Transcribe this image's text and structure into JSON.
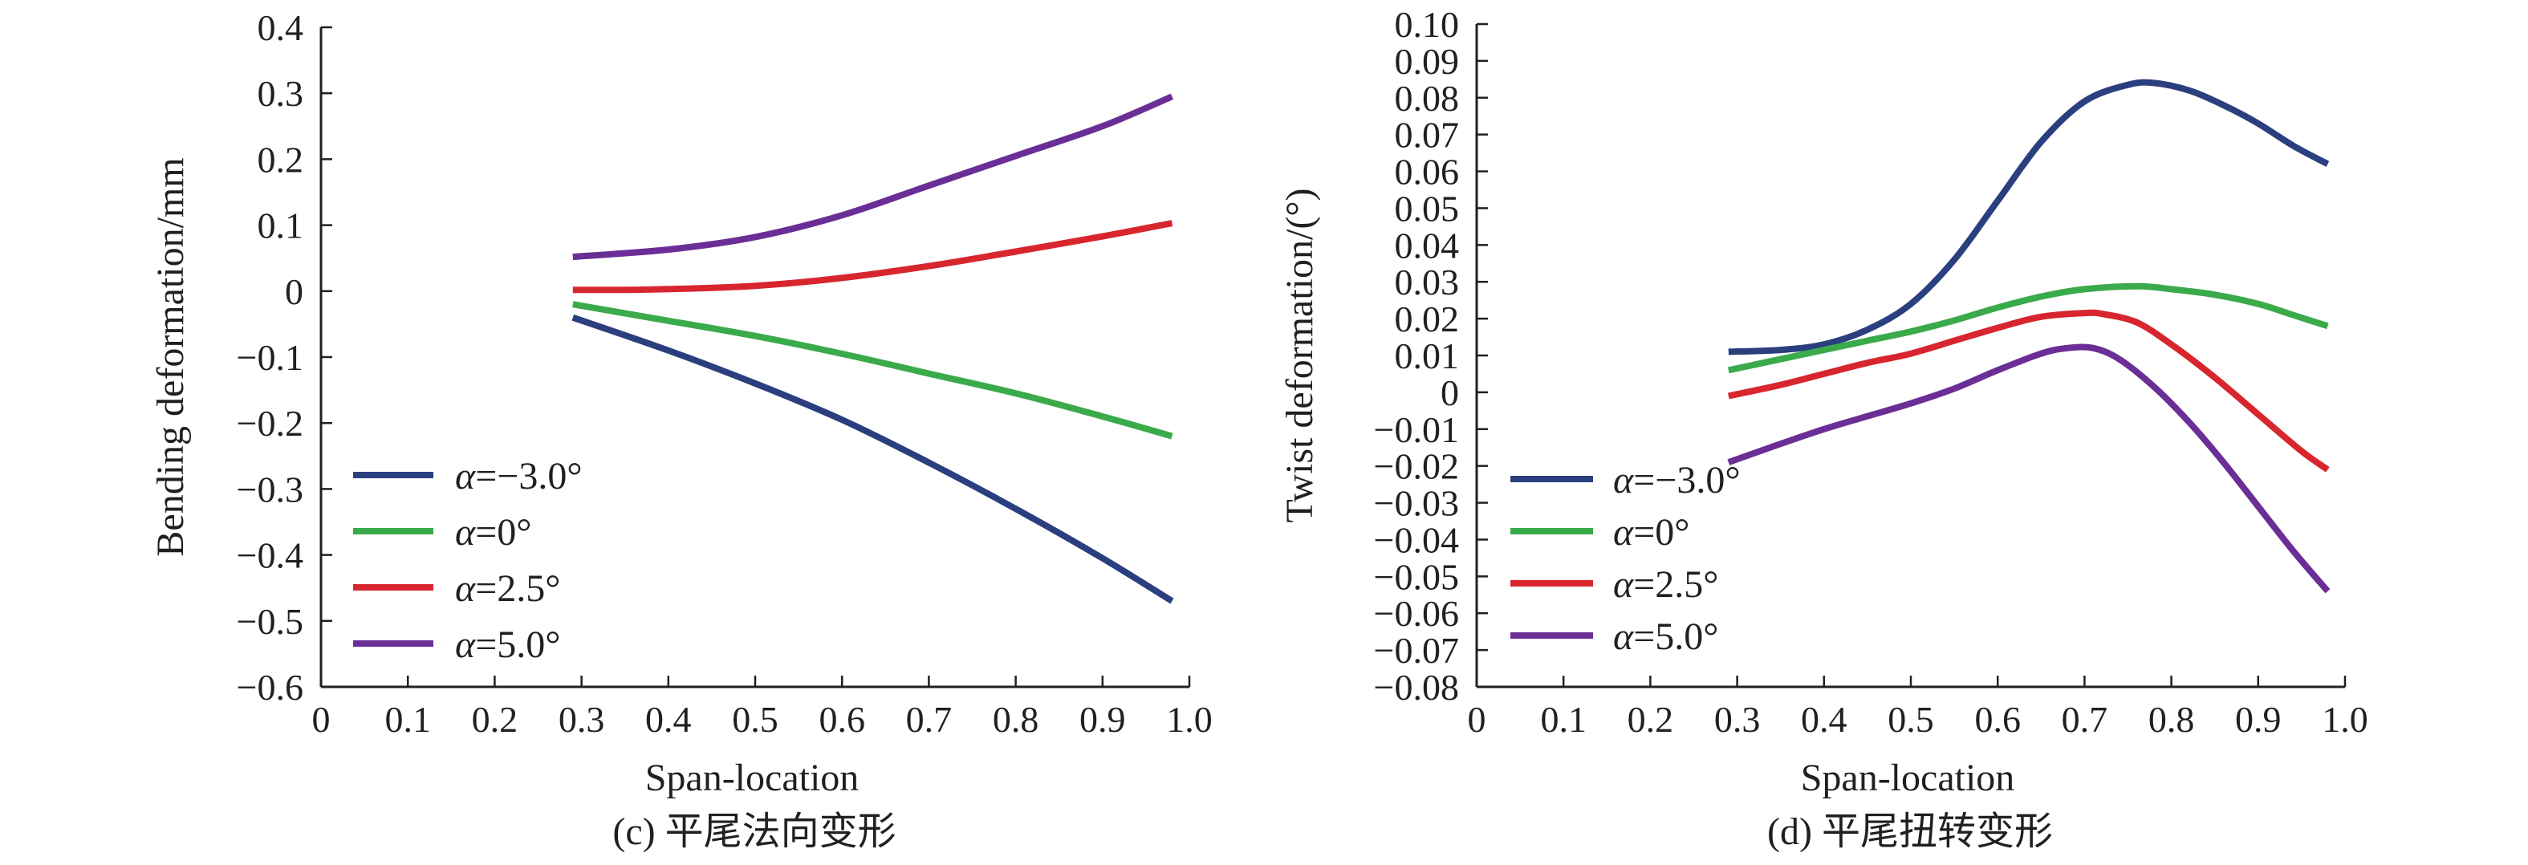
{
  "figure_captions": [
    "(c) 平尾法向变形",
    "(d) 平尾扭转变形"
  ],
  "chart_data": [
    {
      "type": "line",
      "caption": "(c) 平尾法向变形",
      "xlabel": "Span-location",
      "ylabel": "Bending deformation/mm",
      "xlim": [
        0,
        1.0
      ],
      "ylim": [
        -0.6,
        0.4
      ],
      "xticks": [
        0,
        0.1,
        0.2,
        0.3,
        0.4,
        0.5,
        0.6,
        0.7,
        0.8,
        0.9,
        1.0
      ],
      "xtick_labels": [
        "0",
        "0.1",
        "0.2",
        "0.3",
        "0.4",
        "0.5",
        "0.6",
        "0.7",
        "0.8",
        "0.9",
        "1.0"
      ],
      "yticks": [
        0.4,
        0.3,
        0.2,
        0.1,
        0,
        -0.1,
        -0.2,
        -0.3,
        -0.4,
        -0.5,
        -0.6
      ],
      "ytick_labels": [
        "0.4",
        "0.3",
        "0.2",
        "0.1",
        "0",
        "−0.1",
        "−0.2",
        "−0.3",
        "−0.4",
        "−0.5",
        "−0.6"
      ],
      "legend_position": "lower-left",
      "grid": false,
      "series": [
        {
          "name": "−3.0°",
          "color": "#2b3f7f",
          "x": [
            0.29,
            0.4,
            0.5,
            0.6,
            0.7,
            0.8,
            0.9,
            0.98
          ],
          "y": [
            -0.04,
            -0.09,
            -0.14,
            -0.195,
            -0.26,
            -0.33,
            -0.405,
            -0.47
          ]
        },
        {
          "name": "0°",
          "color": "#3aaa4a",
          "x": [
            0.29,
            0.4,
            0.5,
            0.6,
            0.7,
            0.8,
            0.9,
            0.98
          ],
          "y": [
            -0.02,
            -0.045,
            -0.068,
            -0.095,
            -0.125,
            -0.155,
            -0.19,
            -0.22
          ]
        },
        {
          "name": "2.5°",
          "color": "#d8262e",
          "x": [
            0.29,
            0.35,
            0.4,
            0.5,
            0.6,
            0.7,
            0.8,
            0.9,
            0.98
          ],
          "y": [
            0.002,
            0.002,
            0.003,
            0.008,
            0.02,
            0.038,
            0.06,
            0.083,
            0.103
          ]
        },
        {
          "name": "5.0°",
          "color": "#6a2e96",
          "x": [
            0.29,
            0.4,
            0.5,
            0.6,
            0.7,
            0.8,
            0.9,
            0.98
          ],
          "y": [
            0.052,
            0.063,
            0.082,
            0.115,
            0.16,
            0.205,
            0.25,
            0.295
          ]
        }
      ]
    },
    {
      "type": "line",
      "caption": "(d) 平尾扭转变形",
      "xlabel": "Span-location",
      "ylabel": "Twist deformation/(°)",
      "xlim": [
        0,
        1.0
      ],
      "ylim": [
        -0.08,
        0.1
      ],
      "xticks": [
        0,
        0.1,
        0.2,
        0.3,
        0.4,
        0.5,
        0.6,
        0.7,
        0.8,
        0.9,
        1.0
      ],
      "xtick_labels": [
        "0",
        "0.1",
        "0.2",
        "0.3",
        "0.4",
        "0.5",
        "0.6",
        "0.7",
        "0.8",
        "0.9",
        "1.0"
      ],
      "yticks": [
        0.1,
        0.09,
        0.08,
        0.07,
        0.06,
        0.05,
        0.04,
        0.03,
        0.02,
        0.01,
        0,
        -0.01,
        -0.02,
        -0.03,
        -0.04,
        -0.05,
        -0.06,
        -0.07,
        -0.08
      ],
      "ytick_labels": [
        "0.10",
        "0.09",
        "0.08",
        "0.07",
        "0.06",
        "0.05",
        "0.04",
        "0.03",
        "0.02",
        "0.01",
        "0",
        "−0.01",
        "−0.02",
        "−0.03",
        "−0.04",
        "−0.05",
        "−0.06",
        "−0.07",
        "−0.08"
      ],
      "legend_position": "lower-left",
      "grid": false,
      "series": [
        {
          "name": "−3.0°",
          "color": "#2b3f7f",
          "x": [
            0.29,
            0.35,
            0.4,
            0.45,
            0.5,
            0.55,
            0.6,
            0.65,
            0.7,
            0.75,
            0.78,
            0.82,
            0.86,
            0.9,
            0.94,
            0.98
          ],
          "y": [
            0.011,
            0.0115,
            0.013,
            0.017,
            0.024,
            0.036,
            0.052,
            0.068,
            0.079,
            0.0835,
            0.084,
            0.082,
            0.078,
            0.073,
            0.067,
            0.062
          ]
        },
        {
          "name": "0°",
          "color": "#3aaa4a",
          "x": [
            0.29,
            0.35,
            0.4,
            0.45,
            0.5,
            0.55,
            0.6,
            0.65,
            0.7,
            0.76,
            0.8,
            0.85,
            0.9,
            0.94,
            0.98
          ],
          "y": [
            0.006,
            0.009,
            0.0115,
            0.014,
            0.0165,
            0.0195,
            0.023,
            0.026,
            0.028,
            0.0288,
            0.028,
            0.0265,
            0.024,
            0.021,
            0.018
          ]
        },
        {
          "name": "2.5°",
          "color": "#d8262e",
          "x": [
            0.29,
            0.35,
            0.4,
            0.45,
            0.5,
            0.55,
            0.6,
            0.65,
            0.7,
            0.72,
            0.76,
            0.8,
            0.85,
            0.9,
            0.95,
            0.98
          ],
          "y": [
            -0.001,
            0.002,
            0.005,
            0.008,
            0.0105,
            0.014,
            0.0175,
            0.0205,
            0.0215,
            0.0213,
            0.019,
            0.013,
            0.004,
            -0.006,
            -0.016,
            -0.021
          ]
        },
        {
          "name": "5.0°",
          "color": "#6a2e96",
          "x": [
            0.29,
            0.35,
            0.4,
            0.45,
            0.5,
            0.55,
            0.6,
            0.65,
            0.68,
            0.71,
            0.74,
            0.78,
            0.82,
            0.86,
            0.9,
            0.94,
            0.98
          ],
          "y": [
            -0.019,
            -0.014,
            -0.01,
            -0.0065,
            -0.003,
            0.001,
            0.006,
            0.0105,
            0.012,
            0.012,
            0.009,
            0.0015,
            -0.008,
            -0.019,
            -0.031,
            -0.043,
            -0.054
          ]
        }
      ]
    }
  ]
}
